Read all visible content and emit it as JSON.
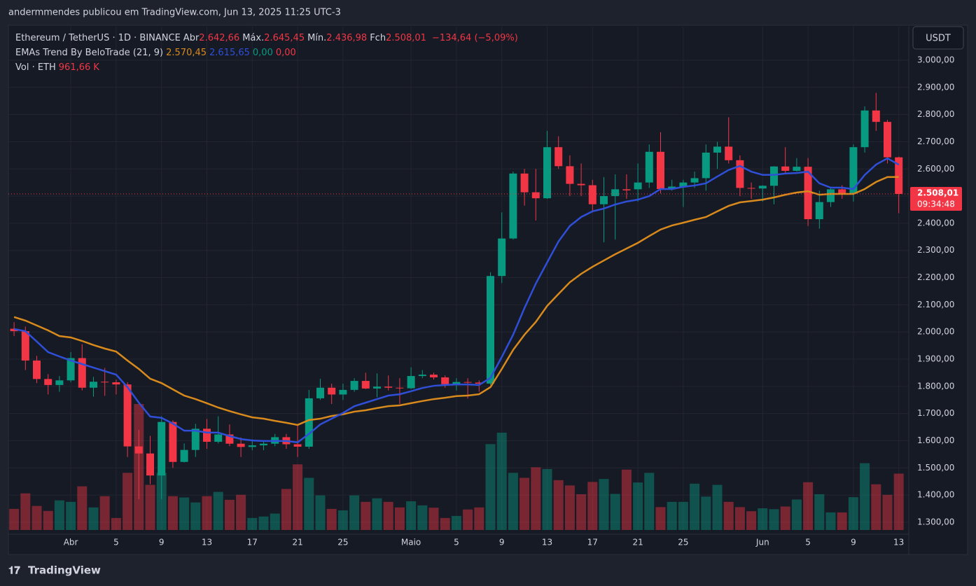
{
  "header": {
    "text": "andermmendes publicou em TradingView.com, Jun 13, 2025 11:25 UTC-3"
  },
  "footer": {
    "brand": "TradingView"
  },
  "currency_button": "USDT",
  "chart_data": {
    "type": "candlestick",
    "title": "Ethereum / TetherUS · 1D · BINANCE",
    "legend": [
      {
        "label": "Abr",
        "value": "2.642,66"
      },
      {
        "label": "Máx.",
        "value": "2.645,45"
      },
      {
        "label": "Mín.",
        "value": "2.436,98"
      },
      {
        "label": "Fch",
        "value": "2.508,01"
      }
    ],
    "change_label": "−134,64 (−5,09%)",
    "x": [
      "2025-03-27",
      "2025-03-28",
      "2025-03-29",
      "2025-03-30",
      "2025-03-31",
      "2025-04-01",
      "2025-04-02",
      "2025-04-03",
      "2025-04-04",
      "2025-04-05",
      "2025-04-06",
      "2025-04-07",
      "2025-04-08",
      "2025-04-09",
      "2025-04-10",
      "2025-04-11",
      "2025-04-12",
      "2025-04-13",
      "2025-04-14",
      "2025-04-15",
      "2025-04-16",
      "2025-04-17",
      "2025-04-18",
      "2025-04-19",
      "2025-04-20",
      "2025-04-21",
      "2025-04-22",
      "2025-04-23",
      "2025-04-24",
      "2025-04-25",
      "2025-04-26",
      "2025-04-27",
      "2025-04-28",
      "2025-04-29",
      "2025-04-30",
      "2025-05-01",
      "2025-05-02",
      "2025-05-03",
      "2025-05-04",
      "2025-05-05",
      "2025-05-06",
      "2025-05-07",
      "2025-05-08",
      "2025-05-09",
      "2025-05-10",
      "2025-05-11",
      "2025-05-12",
      "2025-05-13",
      "2025-05-14",
      "2025-05-15",
      "2025-05-16",
      "2025-05-17",
      "2025-05-18",
      "2025-05-19",
      "2025-05-20",
      "2025-05-21",
      "2025-05-22",
      "2025-05-23",
      "2025-05-24",
      "2025-05-25",
      "2025-05-26",
      "2025-05-27",
      "2025-05-28",
      "2025-05-29",
      "2025-05-30",
      "2025-05-31",
      "2025-06-01",
      "2025-06-02",
      "2025-06-03",
      "2025-06-04",
      "2025-06-05",
      "2025-06-06",
      "2025-06-07",
      "2025-06-08",
      "2025-06-09",
      "2025-06-10",
      "2025-06-11",
      "2025-06-12",
      "2025-06-13"
    ],
    "open": [
      2012,
      2003,
      1895,
      1827,
      1805,
      1822,
      1904,
      1795,
      1817,
      1815,
      1807,
      1579,
      1553,
      1472,
      1669,
      1522,
      1566,
      1644,
      1596,
      1623,
      1589,
      1577,
      1583,
      1589,
      1613,
      1587,
      1578,
      1756,
      1795,
      1770,
      1787,
      1820,
      1792,
      1799,
      1795,
      1793,
      1838,
      1843,
      1833,
      1808,
      1816,
      1814,
      1810,
      2206,
      2344,
      2583,
      2514,
      2492,
      2680,
      2610,
      2545,
      2540,
      2470,
      2500,
      2525,
      2525,
      2550,
      2663,
      2526,
      2535,
      2550,
      2566,
      2660,
      2682,
      2632,
      2530,
      2528,
      2538,
      2609,
      2593,
      2608,
      2415,
      2478,
      2525,
      2509,
      2680,
      2815,
      2773,
      2642.66
    ],
    "high": [
      2036,
      2020,
      1912,
      1845,
      1838,
      1926,
      1955,
      1835,
      1868,
      1825,
      1815,
      1640,
      1618,
      1690,
      1675,
      1590,
      1662,
      1680,
      1690,
      1660,
      1612,
      1605,
      1600,
      1625,
      1625,
      1658,
      1787,
      1828,
      1810,
      1810,
      1830,
      1850,
      1848,
      1840,
      1830,
      1870,
      1860,
      1850,
      1840,
      1830,
      1830,
      1822,
      2220,
      2440,
      2590,
      2600,
      2600,
      2740,
      2720,
      2650,
      2620,
      2560,
      2570,
      2580,
      2580,
      2620,
      2690,
      2735,
      2560,
      2560,
      2590,
      2690,
      2700,
      2790,
      2650,
      2550,
      2540,
      2610,
      2680,
      2640,
      2640,
      2520,
      2530,
      2540,
      2690,
      2830,
      2880,
      2780,
      2645.45
    ],
    "low": [
      1985,
      1860,
      1812,
      1770,
      1780,
      1815,
      1785,
      1762,
      1765,
      1770,
      1540,
      1385,
      1440,
      1385,
      1500,
      1520,
      1540,
      1570,
      1590,
      1580,
      1540,
      1565,
      1565,
      1580,
      1570,
      1540,
      1570,
      1750,
      1735,
      1750,
      1780,
      1790,
      1760,
      1785,
      1735,
      1790,
      1830,
      1825,
      1795,
      1785,
      1755,
      1780,
      1805,
      2180,
      2340,
      2465,
      2410,
      2490,
      2600,
      2500,
      2500,
      2440,
      2330,
      2340,
      2490,
      2480,
      2530,
      2510,
      2520,
      2460,
      2530,
      2520,
      2600,
      2620,
      2500,
      2490,
      2480,
      2470,
      2580,
      2590,
      2390,
      2380,
      2460,
      2490,
      2480,
      2660,
      2740,
      2620,
      2436.98
    ],
    "close": [
      2003,
      1895,
      1827,
      1805,
      1822,
      1904,
      1795,
      1817,
      1815,
      1807,
      1579,
      1553,
      1472,
      1669,
      1522,
      1566,
      1644,
      1596,
      1623,
      1589,
      1577,
      1583,
      1589,
      1613,
      1587,
      1578,
      1756,
      1795,
      1770,
      1787,
      1820,
      1792,
      1799,
      1795,
      1793,
      1838,
      1843,
      1833,
      1808,
      1816,
      1814,
      1810,
      2206,
      2344,
      2583,
      2514,
      2492,
      2680,
      2610,
      2545,
      2540,
      2470,
      2500,
      2525,
      2521,
      2550,
      2663,
      2526,
      2535,
      2550,
      2566,
      2660,
      2682,
      2632,
      2530,
      2528,
      2538,
      2609,
      2593,
      2608,
      2415,
      2478,
      2525,
      2509,
      2680,
      2815,
      2773,
      2642.66,
      2508.01
    ],
    "up_color": "#089981",
    "down_color": "#f23645",
    "indicator": {
      "name": "EMAs Trend By BeloTrade (21, 9)",
      "series": [
        {
          "color": "#d98a1c",
          "value_label": "2.570,45",
          "values": [
            2055,
            2042,
            2024,
            2006,
            1985,
            1980,
            1967,
            1952,
            1939,
            1928,
            1895,
            1864,
            1828,
            1812,
            1789,
            1766,
            1753,
            1738,
            1722,
            1709,
            1697,
            1686,
            1681,
            1673,
            1666,
            1658,
            1676,
            1681,
            1691,
            1697,
            1707,
            1712,
            1720,
            1727,
            1730,
            1738,
            1746,
            1753,
            1758,
            1764,
            1766,
            1771,
            1797,
            1864,
            1934,
            1990,
            2037,
            2096,
            2140,
            2183,
            2214,
            2240,
            2263,
            2286,
            2307,
            2328,
            2353,
            2377,
            2392,
            2402,
            2413,
            2423,
            2444,
            2464,
            2477,
            2482,
            2487,
            2495,
            2505,
            2513,
            2518,
            2505,
            2508,
            2508,
            2508,
            2526,
            2552,
            2570,
            2570.45
          ]
        },
        {
          "color": "#2f4fd8",
          "value_label": "2.615,65",
          "values": [
            2011,
            2003,
            1965,
            1926,
            1910,
            1895,
            1882,
            1869,
            1856,
            1843,
            1797,
            1740,
            1689,
            1684,
            1663,
            1637,
            1637,
            1630,
            1630,
            1617,
            1606,
            1601,
            1599,
            1599,
            1599,
            1594,
            1625,
            1660,
            1681,
            1702,
            1727,
            1740,
            1753,
            1766,
            1771,
            1782,
            1794,
            1802,
            1805,
            1807,
            1807,
            1805,
            1831,
            1908,
            1990,
            2088,
            2178,
            2256,
            2333,
            2390,
            2423,
            2444,
            2454,
            2469,
            2480,
            2487,
            2500,
            2526,
            2526,
            2534,
            2539,
            2547,
            2572,
            2596,
            2611,
            2590,
            2578,
            2578,
            2583,
            2585,
            2590,
            2547,
            2531,
            2531,
            2526,
            2578,
            2616,
            2639,
            2615.65
          ]
        }
      ],
      "extra_labels": [
        {
          "label": "0,00",
          "color": "#089981"
        },
        {
          "label": "0,00",
          "color": "#f23645"
        }
      ]
    },
    "volume": {
      "name": "Vol · ETH",
      "value_label": "961,66 K",
      "values": [
        360000,
        625000,
        410000,
        325000,
        505000,
        480000,
        745000,
        385000,
        577000,
        205000,
        975000,
        2150000,
        770000,
        975000,
        577000,
        555000,
        470000,
        577000,
        650000,
        515000,
        600000,
        205000,
        230000,
        280000,
        700000,
        1120000,
        890000,
        590000,
        360000,
        335000,
        590000,
        480000,
        540000,
        480000,
        385000,
        490000,
        420000,
        380000,
        205000,
        240000,
        350000,
        385000,
        1465000,
        1660000,
        975000,
        890000,
        1070000,
        1040000,
        850000,
        760000,
        610000,
        820000,
        870000,
        615000,
        1030000,
        810000,
        975000,
        390000,
        480000,
        480000,
        790000,
        570000,
        770000,
        480000,
        390000,
        320000,
        370000,
        355000,
        400000,
        520000,
        815000,
        610000,
        300000,
        300000,
        560000,
        1140000,
        780000,
        600000,
        961660
      ]
    },
    "last_price": {
      "label": "2.508,01",
      "countdown": "09:34:48",
      "value": 2508.01
    },
    "ylim": [
      1271.5,
      3123.6
    ],
    "yticks": [
      {
        "value": 3000,
        "label": "3.000,00"
      },
      {
        "value": 2900,
        "label": "2.900,00"
      },
      {
        "value": 2800,
        "label": "2.800,00"
      },
      {
        "value": 2700,
        "label": "2.700,00"
      },
      {
        "value": 2600,
        "label": "2.600,00"
      },
      {
        "value": 2500,
        "label": "2.500,00"
      },
      {
        "value": 2400,
        "label": "2.400,00"
      },
      {
        "value": 2300,
        "label": "2.300,00"
      },
      {
        "value": 2200,
        "label": "2.200,00"
      },
      {
        "value": 2100,
        "label": "2.100,00"
      },
      {
        "value": 2000,
        "label": "2.000,00"
      },
      {
        "value": 1900,
        "label": "1.900,00"
      },
      {
        "value": 1800,
        "label": "1.800,00"
      },
      {
        "value": 1700,
        "label": "1.700,00"
      },
      {
        "value": 1600,
        "label": "1.600,00"
      },
      {
        "value": 1500,
        "label": "1.500,00"
      },
      {
        "value": 1400,
        "label": "1.400,00"
      },
      {
        "value": 1300,
        "label": "1.300,00"
      }
    ],
    "xticks": [
      {
        "value": "2025-04-01",
        "label": "Abr"
      },
      {
        "value": "2025-04-05",
        "label": "5"
      },
      {
        "value": "2025-04-09",
        "label": "9"
      },
      {
        "value": "2025-04-13",
        "label": "13"
      },
      {
        "value": "2025-04-17",
        "label": "17"
      },
      {
        "value": "2025-04-21",
        "label": "21"
      },
      {
        "value": "2025-04-25",
        "label": "25"
      },
      {
        "value": "2025-05-01",
        "label": "Maio"
      },
      {
        "value": "2025-05-05",
        "label": "5"
      },
      {
        "value": "2025-05-09",
        "label": "9"
      },
      {
        "value": "2025-05-13",
        "label": "13"
      },
      {
        "value": "2025-05-17",
        "label": "17"
      },
      {
        "value": "2025-05-21",
        "label": "21"
      },
      {
        "value": "2025-05-25",
        "label": "25"
      },
      {
        "value": "2025-06-01",
        "label": "Jun"
      },
      {
        "value": "2025-06-05",
        "label": "5"
      },
      {
        "value": "2025-06-09",
        "label": "9"
      },
      {
        "value": "2025-06-13",
        "label": "13"
      }
    ],
    "grid": true
  }
}
